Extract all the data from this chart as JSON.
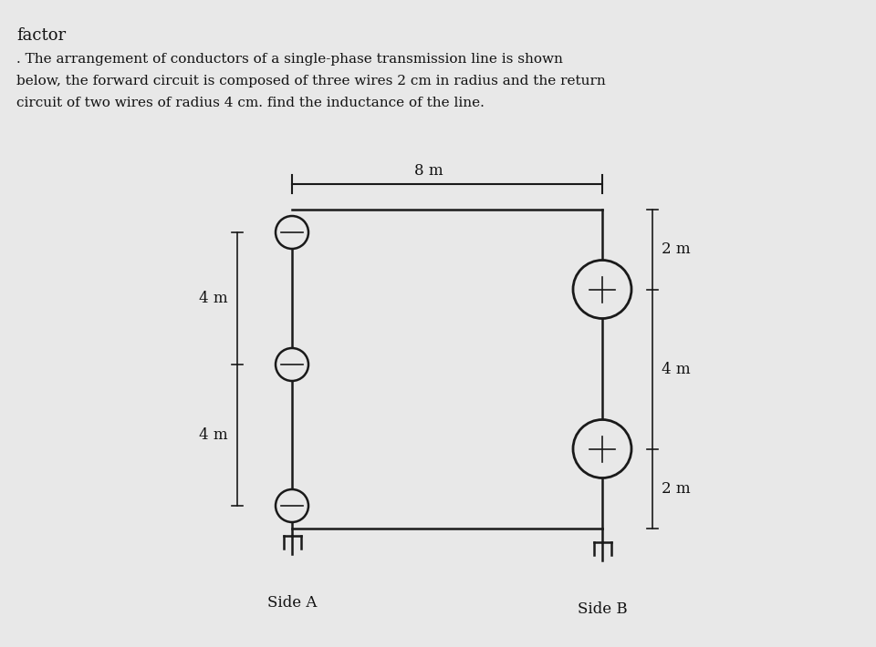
{
  "title_text": "factor",
  "problem_text1": ". The arrangement of conductors of a single-phase transmission line is shown",
  "problem_text2": "below, the forward circuit is composed of three wires 2 cm in radius and the return",
  "problem_text3": "circuit of two wires of radius 4 cm. find the inductance of the line.",
  "background_color": "#e8e8e8",
  "label_8m": "8 m",
  "label_4m_left_top": "4 m",
  "label_4m_left_bot": "4 m",
  "label_4m_right": "4 m",
  "label_2m_top": "2 m",
  "label_2m_bot": "2 m",
  "label_side_a": "Side A",
  "label_side_b": "Side B",
  "line_color": "#1a1a1a",
  "circle_color": "#1a1a1a",
  "text_color": "#111111"
}
